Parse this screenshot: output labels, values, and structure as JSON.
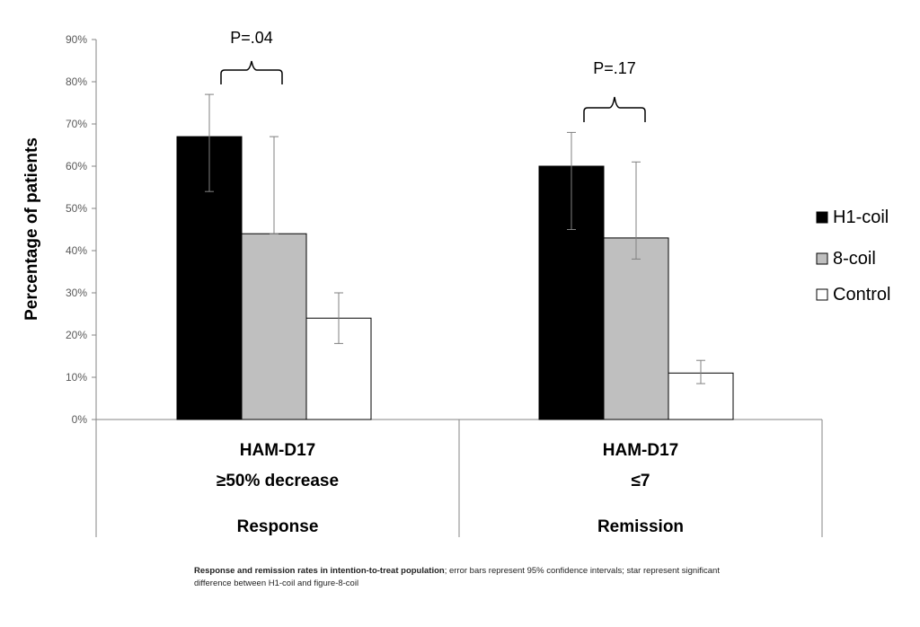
{
  "chart_data": {
    "type": "bar",
    "ylabel": "Percentage of patients",
    "ylim": [
      0,
      90
    ],
    "y_ticks": [
      "0%",
      "10%",
      "20%",
      "30%",
      "40%",
      "50%",
      "60%",
      "70%",
      "80%",
      "90%"
    ],
    "groups": [
      {
        "line1": "HAM-D17",
        "line2": "≥50% decrease",
        "label": "Response"
      },
      {
        "line1": "HAM-D17",
        "line2": "≤7",
        "label": "Remission"
      }
    ],
    "series": [
      {
        "name": "H1-coil",
        "color": "#000000",
        "values": [
          67,
          60
        ],
        "err_low": [
          54,
          45
        ],
        "err_high": [
          77,
          68
        ]
      },
      {
        "name": "8-coil",
        "color": "#bfbfbf",
        "values": [
          44,
          43
        ],
        "err_low": [
          44,
          38
        ],
        "err_high": [
          67,
          61
        ]
      },
      {
        "name": "Control",
        "color": "#ffffff",
        "values": [
          24,
          11
        ],
        "err_low": [
          18,
          8.5
        ],
        "err_high": [
          30,
          14
        ]
      }
    ],
    "annotations": [
      "P=.04",
      "P=.17"
    ],
    "legend_position": "right",
    "grid": false
  },
  "caption": {
    "bold": "Response and remission rates in intention-to-treat population",
    "rest": "; error bars represent 95% confidence intervals; star represent significant difference between H1-coil and figure-8-coil"
  }
}
